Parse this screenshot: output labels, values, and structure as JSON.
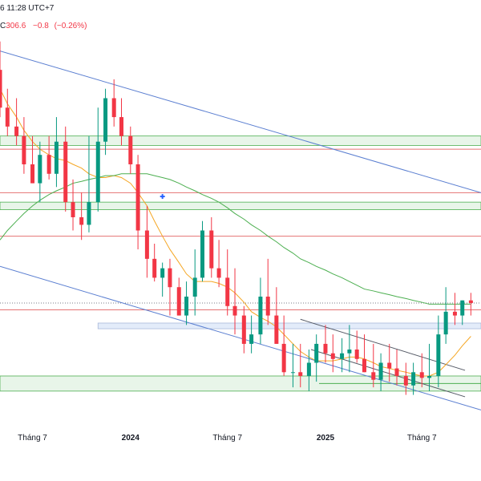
{
  "header": {
    "line1": "6 11:28 UTC+7",
    "symbol_fragment": "C",
    "price": "306.6",
    "change": "−0.8",
    "change_pct": "(−0.26%)"
  },
  "colors": {
    "up": "#089981",
    "down": "#f23645",
    "trendline": "#5b7fd1",
    "ma_short": "#f5a623",
    "ma_long": "#4caf50",
    "support_zone_fill": "#e8f5e9",
    "support_zone_border": "#4caf50",
    "resistance_line": "#e57373",
    "blue_zone_fill": "#e3ecfa"
  },
  "chart_data": {
    "type": "candlestick",
    "x_tick_labels": [
      "Tháng 7",
      "2024",
      "Tháng 7",
      "2025",
      "Tháng 7"
    ],
    "grid": false,
    "legend": "none",
    "x": [
      "2023-05-01",
      "2023-05-15",
      "2023-06-01",
      "2023-06-15",
      "2023-07-01",
      "2023-07-15",
      "2023-08-01",
      "2023-08-15",
      "2023-09-01",
      "2023-09-15",
      "2023-10-01",
      "2023-10-15",
      "2023-11-01",
      "2023-11-15",
      "2023-12-01",
      "2023-12-15",
      "2024-01-01",
      "2024-01-15",
      "2024-02-01",
      "2024-02-15",
      "2024-03-01",
      "2024-03-15",
      "2024-04-01",
      "2024-04-15",
      "2024-05-01",
      "2024-05-15",
      "2024-06-01",
      "2024-06-15",
      "2024-07-01",
      "2024-07-15",
      "2024-08-01",
      "2024-08-15",
      "2024-09-01",
      "2024-09-15",
      "2024-10-01",
      "2024-10-15",
      "2024-11-01",
      "2024-11-15",
      "2024-12-01",
      "2024-12-15",
      "2025-01-01",
      "2025-01-15",
      "2025-02-01",
      "2025-02-15",
      "2025-03-01",
      "2025-03-15",
      "2025-04-01",
      "2025-04-15",
      "2025-05-01",
      "2025-05-15",
      "2025-06-01",
      "2025-06-15",
      "2025-07-01",
      "2025-07-15",
      "2025-08-01",
      "2025-08-15",
      "2025-09-01",
      "2025-09-15",
      "2025-10-01"
    ],
    "open": [
      430,
      410,
      400,
      395,
      380,
      370,
      385,
      375,
      392,
      360,
      352,
      348,
      360,
      392,
      415,
      405,
      395,
      380,
      345,
      330,
      320,
      325,
      315,
      300,
      310,
      320,
      345,
      325,
      320,
      305,
      300,
      285,
      290,
      310,
      300,
      285,
      270,
      270,
      268,
      275,
      285,
      280,
      277,
      280,
      282,
      277,
      270,
      266,
      275,
      272,
      268,
      263,
      270,
      267,
      268,
      290,
      302,
      300,
      308
    ],
    "high": [
      445,
      420,
      415,
      405,
      395,
      392,
      395,
      405,
      400,
      372,
      365,
      395,
      410,
      420,
      425,
      415,
      400,
      385,
      358,
      338,
      328,
      330,
      320,
      318,
      335,
      350,
      352,
      340,
      335,
      325,
      305,
      300,
      320,
      330,
      315,
      300,
      285,
      285,
      282,
      290,
      295,
      290,
      288,
      295,
      292,
      290,
      285,
      280,
      285,
      282,
      275,
      275,
      280,
      285,
      300,
      315,
      312,
      308,
      312
    ],
    "low": [
      405,
      395,
      390,
      375,
      370,
      360,
      372,
      368,
      355,
      345,
      340,
      344,
      355,
      385,
      400,
      390,
      375,
      335,
      320,
      318,
      310,
      300,
      300,
      295,
      300,
      318,
      320,
      315,
      300,
      290,
      280,
      280,
      285,
      295,
      285,
      268,
      262,
      262,
      260,
      265,
      275,
      270,
      270,
      270,
      275,
      270,
      262,
      260,
      265,
      263,
      258,
      258,
      262,
      260,
      262,
      285,
      295,
      295,
      300
    ],
    "close": [
      410,
      400,
      395,
      380,
      370,
      385,
      375,
      392,
      360,
      352,
      348,
      360,
      392,
      415,
      405,
      395,
      380,
      345,
      330,
      320,
      325,
      315,
      300,
      310,
      320,
      345,
      325,
      320,
      305,
      300,
      285,
      290,
      310,
      300,
      285,
      270,
      270,
      268,
      275,
      285,
      280,
      277,
      280,
      282,
      277,
      270,
      266,
      275,
      272,
      268,
      263,
      270,
      267,
      268,
      290,
      302,
      300,
      308,
      306.6
    ],
    "series": [
      {
        "type": "line",
        "values": [
          420,
          412,
          405,
          398,
          392,
          388,
          385,
          383,
          382,
          380,
          378,
          375,
          373,
          373,
          374,
          373,
          370,
          365,
          358,
          350,
          342,
          335,
          328,
          322,
          318,
          318,
          318,
          317,
          315,
          312,
          307,
          302,
          299,
          297,
          294,
          290,
          285,
          281,
          278,
          276,
          276,
          276,
          277,
          278,
          278,
          277,
          275,
          273,
          272,
          271,
          270,
          269,
          268,
          268,
          270,
          274,
          279,
          284,
          289
        ]
      },
      {
        "type": "line",
        "values": [
          340,
          345,
          350,
          354,
          358,
          361,
          364,
          366,
          368,
          370,
          371,
          372,
          373,
          374,
          374,
          375,
          375,
          375,
          375,
          374,
          373,
          372,
          370,
          368,
          366,
          364,
          362,
          360,
          357,
          354,
          351,
          348,
          345,
          342,
          339,
          336,
          333,
          330,
          328,
          326,
          324,
          322,
          320,
          318,
          316,
          314,
          313,
          312,
          311,
          310,
          309,
          308,
          307,
          306,
          306,
          306,
          306,
          306,
          306
        ]
      }
    ],
    "horizontal_levels": {
      "resistance_lines": [
        388,
        365,
        342,
        303
      ],
      "support_zones": [
        [
          390,
          395
        ],
        [
          356,
          360
        ],
        [
          260,
          268
        ]
      ],
      "blue_zone": [
        293,
        296
      ],
      "short_support_line": 264,
      "current_price_dotted": 306.6
    }
  }
}
